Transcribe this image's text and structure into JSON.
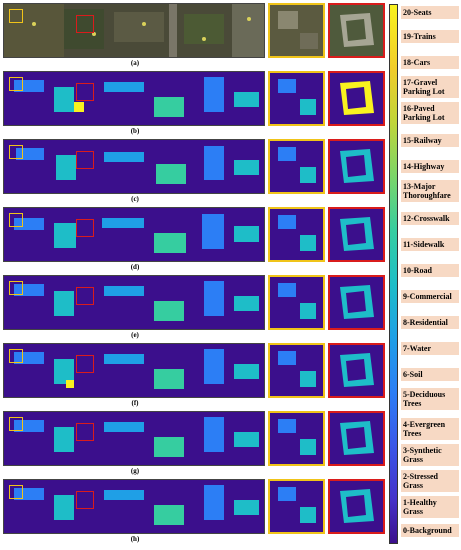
{
  "captions": [
    "(a)",
    "(b)",
    "(c)",
    "(d)",
    "(e)",
    "(f)",
    "(g)",
    "(h)"
  ],
  "legend": {
    "classes": [
      "20-Seats",
      "19-Trains",
      "18-Cars",
      "17-Gravel Parking Lot",
      "16-Paved Parking Lot",
      "15-Railway",
      "14-Highway",
      "13-Major Thoroughfare",
      "12-Crosswalk",
      "11-Sidewalk",
      "10-Road",
      "9-Commercial",
      "8-Residential",
      "7-Water",
      "6-Soil",
      "5-Deciduous Trees",
      "4-Evergreen Trees",
      "3-Synthetic Grass",
      "2-Stressed Grass",
      "1-Healthy Grass",
      "0-Background"
    ]
  },
  "colors": {
    "highlight_yellow": "#f0c419",
    "highlight_red": "#d91c1c",
    "background_class": "#3b0f8c",
    "label_bg": "#f7d9c4"
  }
}
